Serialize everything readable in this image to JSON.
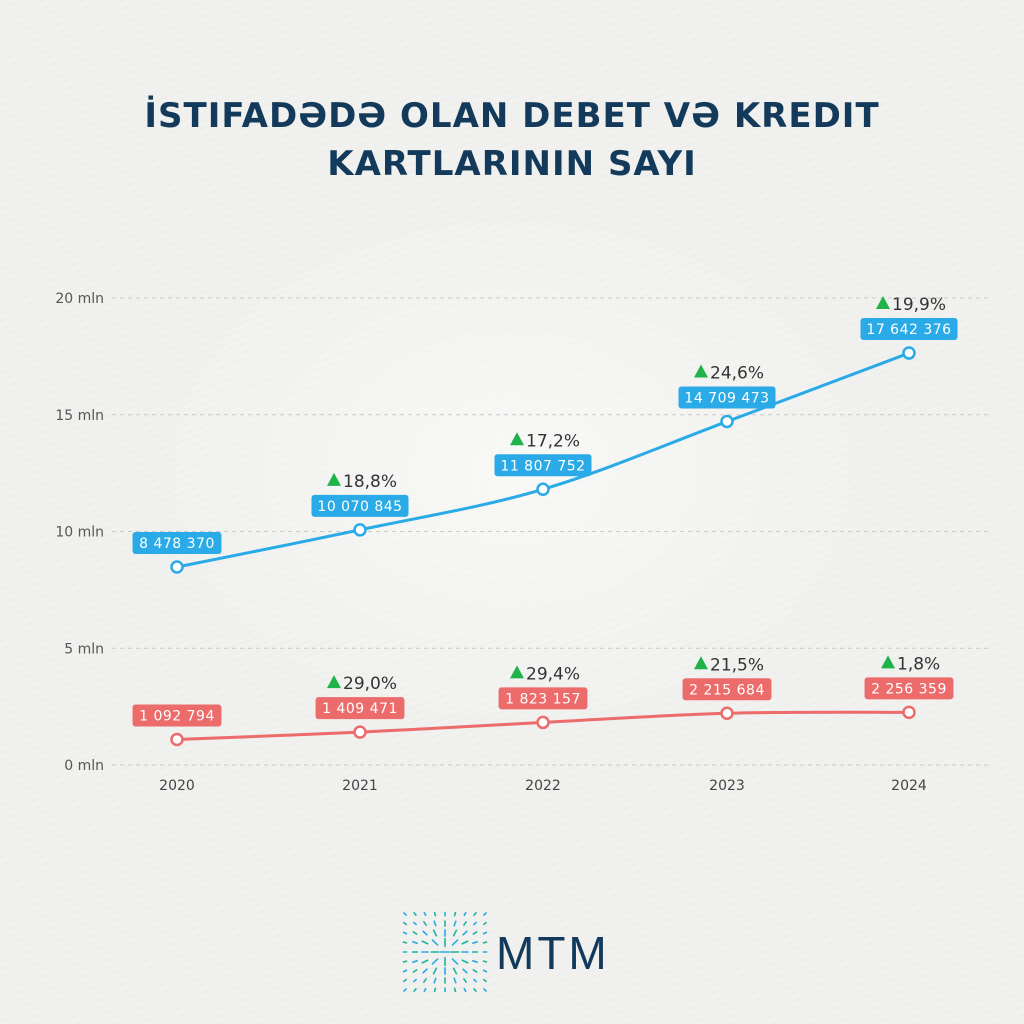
{
  "title": [
    "İstifadədə olan debet və kredit",
    "kartlarının sayı"
  ],
  "colors": {
    "debit": "#2aaae6",
    "credit": "#ec6b6b",
    "arrow": "#1fb34a",
    "title": "#133a5a"
  },
  "chart_data": {
    "type": "line",
    "categories": [
      "2020",
      "2021",
      "2022",
      "2023",
      "2024"
    ],
    "ylim": [
      0,
      20000000
    ],
    "yticks": [
      0,
      5000000,
      10000000,
      15000000,
      20000000
    ],
    "ytick_labels": [
      "0 mln",
      "5 mln",
      "10 mln",
      "15 mln",
      "20 mln"
    ],
    "grid": true,
    "series": [
      {
        "values": [
          8478370,
          10070845,
          11807752,
          14709473,
          17642376
        ],
        "value_labels": [
          "8 478 370",
          "10 070 845",
          "11 807 752",
          "14 709 473",
          "17 642 376"
        ],
        "growth_labels": [
          "",
          "18,8%",
          "17,2%",
          "24,6%",
          "19,9%"
        ],
        "color": "#2aaae6"
      },
      {
        "values": [
          1092794,
          1409471,
          1823157,
          2215684,
          2256359
        ],
        "value_labels": [
          "1 092 794",
          "1 409 471",
          "1 823 157",
          "2 215 684",
          "2 256 359"
        ],
        "growth_labels": [
          "",
          "29,0%",
          "29,4%",
          "21,5%",
          "1,8%"
        ],
        "color": "#ec6b6b"
      }
    ]
  },
  "logo": {
    "text": "MTM",
    "icon": "mtm-grid-logo-icon"
  }
}
